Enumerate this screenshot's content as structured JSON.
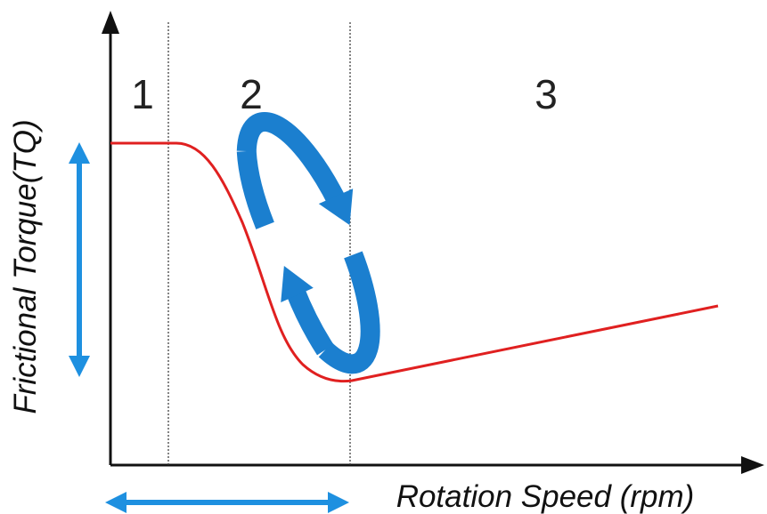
{
  "regions": [
    "1",
    "2",
    "3"
  ],
  "axes": {
    "y_label": "Frictional Torque(TQ)",
    "x_label": "Rotation Speed (rpm)"
  }
}
